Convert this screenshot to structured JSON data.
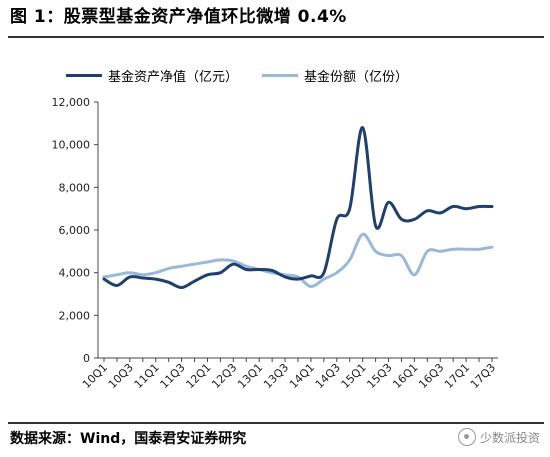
{
  "title": "图 1：股票型基金资产净值环比微增 0.4%",
  "source": "数据来源：Wind，国泰君安证券研究",
  "watermark": "少数派投资",
  "colors": {
    "nav": "#1f3f6e",
    "shares": "#9bb8d8",
    "axis": "#444444",
    "text": "#222222"
  },
  "chart_data": {
    "type": "line",
    "title": "",
    "xlabel": "",
    "ylabel": "",
    "ylim": [
      0,
      12000
    ],
    "yticks": [
      0,
      2000,
      4000,
      6000,
      8000,
      10000,
      12000
    ],
    "ytick_labels": [
      "0",
      "2,000",
      "4,000",
      "6,000",
      "8,000",
      "10,000",
      "12,000"
    ],
    "legend_position": "top-left",
    "grid": false,
    "x": [
      "10Q1",
      "10Q2",
      "10Q3",
      "10Q4",
      "11Q1",
      "11Q2",
      "11Q3",
      "11Q4",
      "12Q1",
      "12Q2",
      "12Q3",
      "12Q4",
      "13Q1",
      "13Q2",
      "13Q3",
      "13Q4",
      "14Q1",
      "14Q2",
      "14Q3",
      "14Q4",
      "15Q1",
      "15Q2",
      "15Q3",
      "15Q4",
      "16Q1",
      "16Q2",
      "16Q3",
      "16Q4",
      "17Q1",
      "17Q2",
      "17Q3"
    ],
    "xtick_labels": [
      "10Q1",
      "",
      "10Q3",
      "",
      "11Q1",
      "",
      "11Q3",
      "",
      "12Q1",
      "",
      "12Q3",
      "",
      "13Q1",
      "",
      "13Q3",
      "",
      "14Q1",
      "",
      "14Q3",
      "",
      "15Q1",
      "",
      "15Q3",
      "",
      "16Q1",
      "",
      "16Q3",
      "",
      "17Q1",
      "",
      "17Q3"
    ],
    "series": [
      {
        "name": "基金资产净值（亿元）",
        "values": [
          3700,
          3400,
          3800,
          3750,
          3700,
          3550,
          3300,
          3600,
          3900,
          4000,
          4400,
          4150,
          4150,
          4100,
          3800,
          3700,
          3850,
          4000,
          6500,
          7000,
          10800,
          6200,
          7300,
          6500,
          6500,
          6900,
          6800,
          7100,
          7000,
          7100,
          7100
        ]
      },
      {
        "name": "基金份额（亿份）",
        "values": [
          3800,
          3900,
          4000,
          3900,
          4000,
          4200,
          4300,
          4400,
          4500,
          4600,
          4550,
          4300,
          4150,
          4000,
          3900,
          3800,
          3350,
          3700,
          4000,
          4600,
          5800,
          5000,
          4800,
          4800,
          3900,
          5000,
          5000,
          5100,
          5100,
          5100,
          5200
        ]
      }
    ]
  }
}
